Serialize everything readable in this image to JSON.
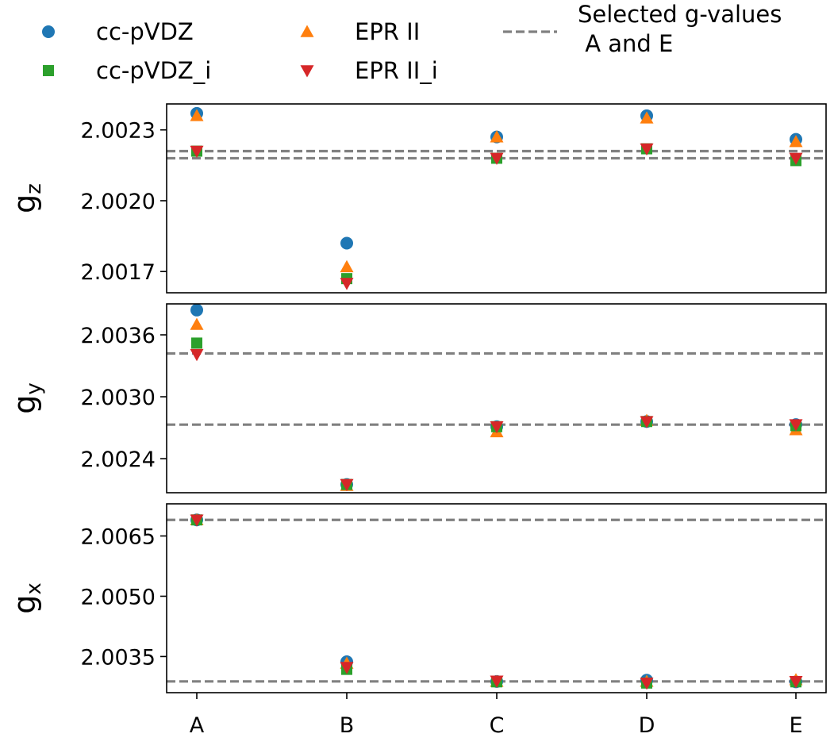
{
  "chart_data": {
    "type": "scatter",
    "categories": [
      "A",
      "B",
      "C",
      "D",
      "E"
    ],
    "legend": {
      "placement": "top",
      "series": [
        {
          "key": "s1",
          "label": "cc-pVDZ",
          "color": "#1f77b4",
          "marker": "circle"
        },
        {
          "key": "s2",
          "label": "cc-pVDZ_i",
          "color": "#2ca02c",
          "marker": "square"
        },
        {
          "key": "s3",
          "label": "EPR II",
          "color": "#ff7f0e",
          "marker": "triangle-up"
        },
        {
          "key": "s4",
          "label": "EPR II_i",
          "color": "#d62728",
          "marker": "triangle-down"
        }
      ],
      "reference": {
        "label_line1": "Selected g-values",
        "label_line2": " A and E",
        "color": "#808080",
        "style": "dashed"
      }
    },
    "panels": [
      {
        "name": "gz",
        "ylabel_main": "g",
        "ylabel_sub": "z",
        "ylim": [
          2.00161,
          2.00241
        ],
        "yticks": [
          2.0017,
          2.002,
          2.0023
        ],
        "ytick_labels": [
          "2.0017",
          "2.0020",
          "2.0023"
        ],
        "reference_lines": [
          2.00221,
          2.00218
        ],
        "series": {
          "s1": [
            2.00237,
            2.00182,
            2.00227,
            2.00236,
            2.00226
          ],
          "s3": [
            2.00236,
            2.00172,
            2.00227,
            2.00235,
            2.00225
          ],
          "s2": [
            2.00221,
            2.00167,
            2.00218,
            2.00222,
            2.00217
          ],
          "s4": [
            2.00221,
            2.00165,
            2.00218,
            2.00222,
            2.00218
          ]
        }
      },
      {
        "name": "gy",
        "ylabel_main": "g",
        "ylabel_sub": "y",
        "ylim": [
          2.00207,
          2.0039
        ],
        "yticks": [
          2.0024,
          2.003,
          2.0036
        ],
        "ytick_labels": [
          "2.0024",
          "2.0030",
          "2.0036"
        ],
        "reference_lines": [
          2.00342,
          2.00273
        ],
        "series": {
          "s1": [
            2.00384,
            2.00215,
            2.00271,
            2.00276,
            2.00273
          ],
          "s3": [
            2.0037,
            2.00214,
            2.00266,
            2.00277,
            2.00268
          ],
          "s2": [
            2.00352,
            2.00215,
            2.00271,
            2.00276,
            2.00272
          ],
          "s4": [
            2.00341,
            2.00215,
            2.00271,
            2.00276,
            2.00273
          ]
        }
      },
      {
        "name": "gx",
        "ylabel_main": "g",
        "ylabel_sub": "x",
        "ylim": [
          2.0026,
          2.0073
        ],
        "yticks": [
          2.0035,
          2.005,
          2.0065
        ],
        "ytick_labels": [
          "2.0035",
          "2.0050",
          "2.0065"
        ],
        "reference_lines": [
          2.0069,
          2.00288
        ],
        "series": {
          "s1": [
            2.0069,
            2.00337,
            2.00288,
            2.00291,
            2.00287
          ],
          "s3": [
            2.0069,
            2.00333,
            2.00288,
            2.00288,
            2.00292
          ],
          "s2": [
            2.0069,
            2.00318,
            2.00287,
            2.00284,
            2.00287
          ],
          "s4": [
            2.0069,
            2.00323,
            2.00289,
            2.00284,
            2.00288
          ]
        }
      }
    ]
  }
}
